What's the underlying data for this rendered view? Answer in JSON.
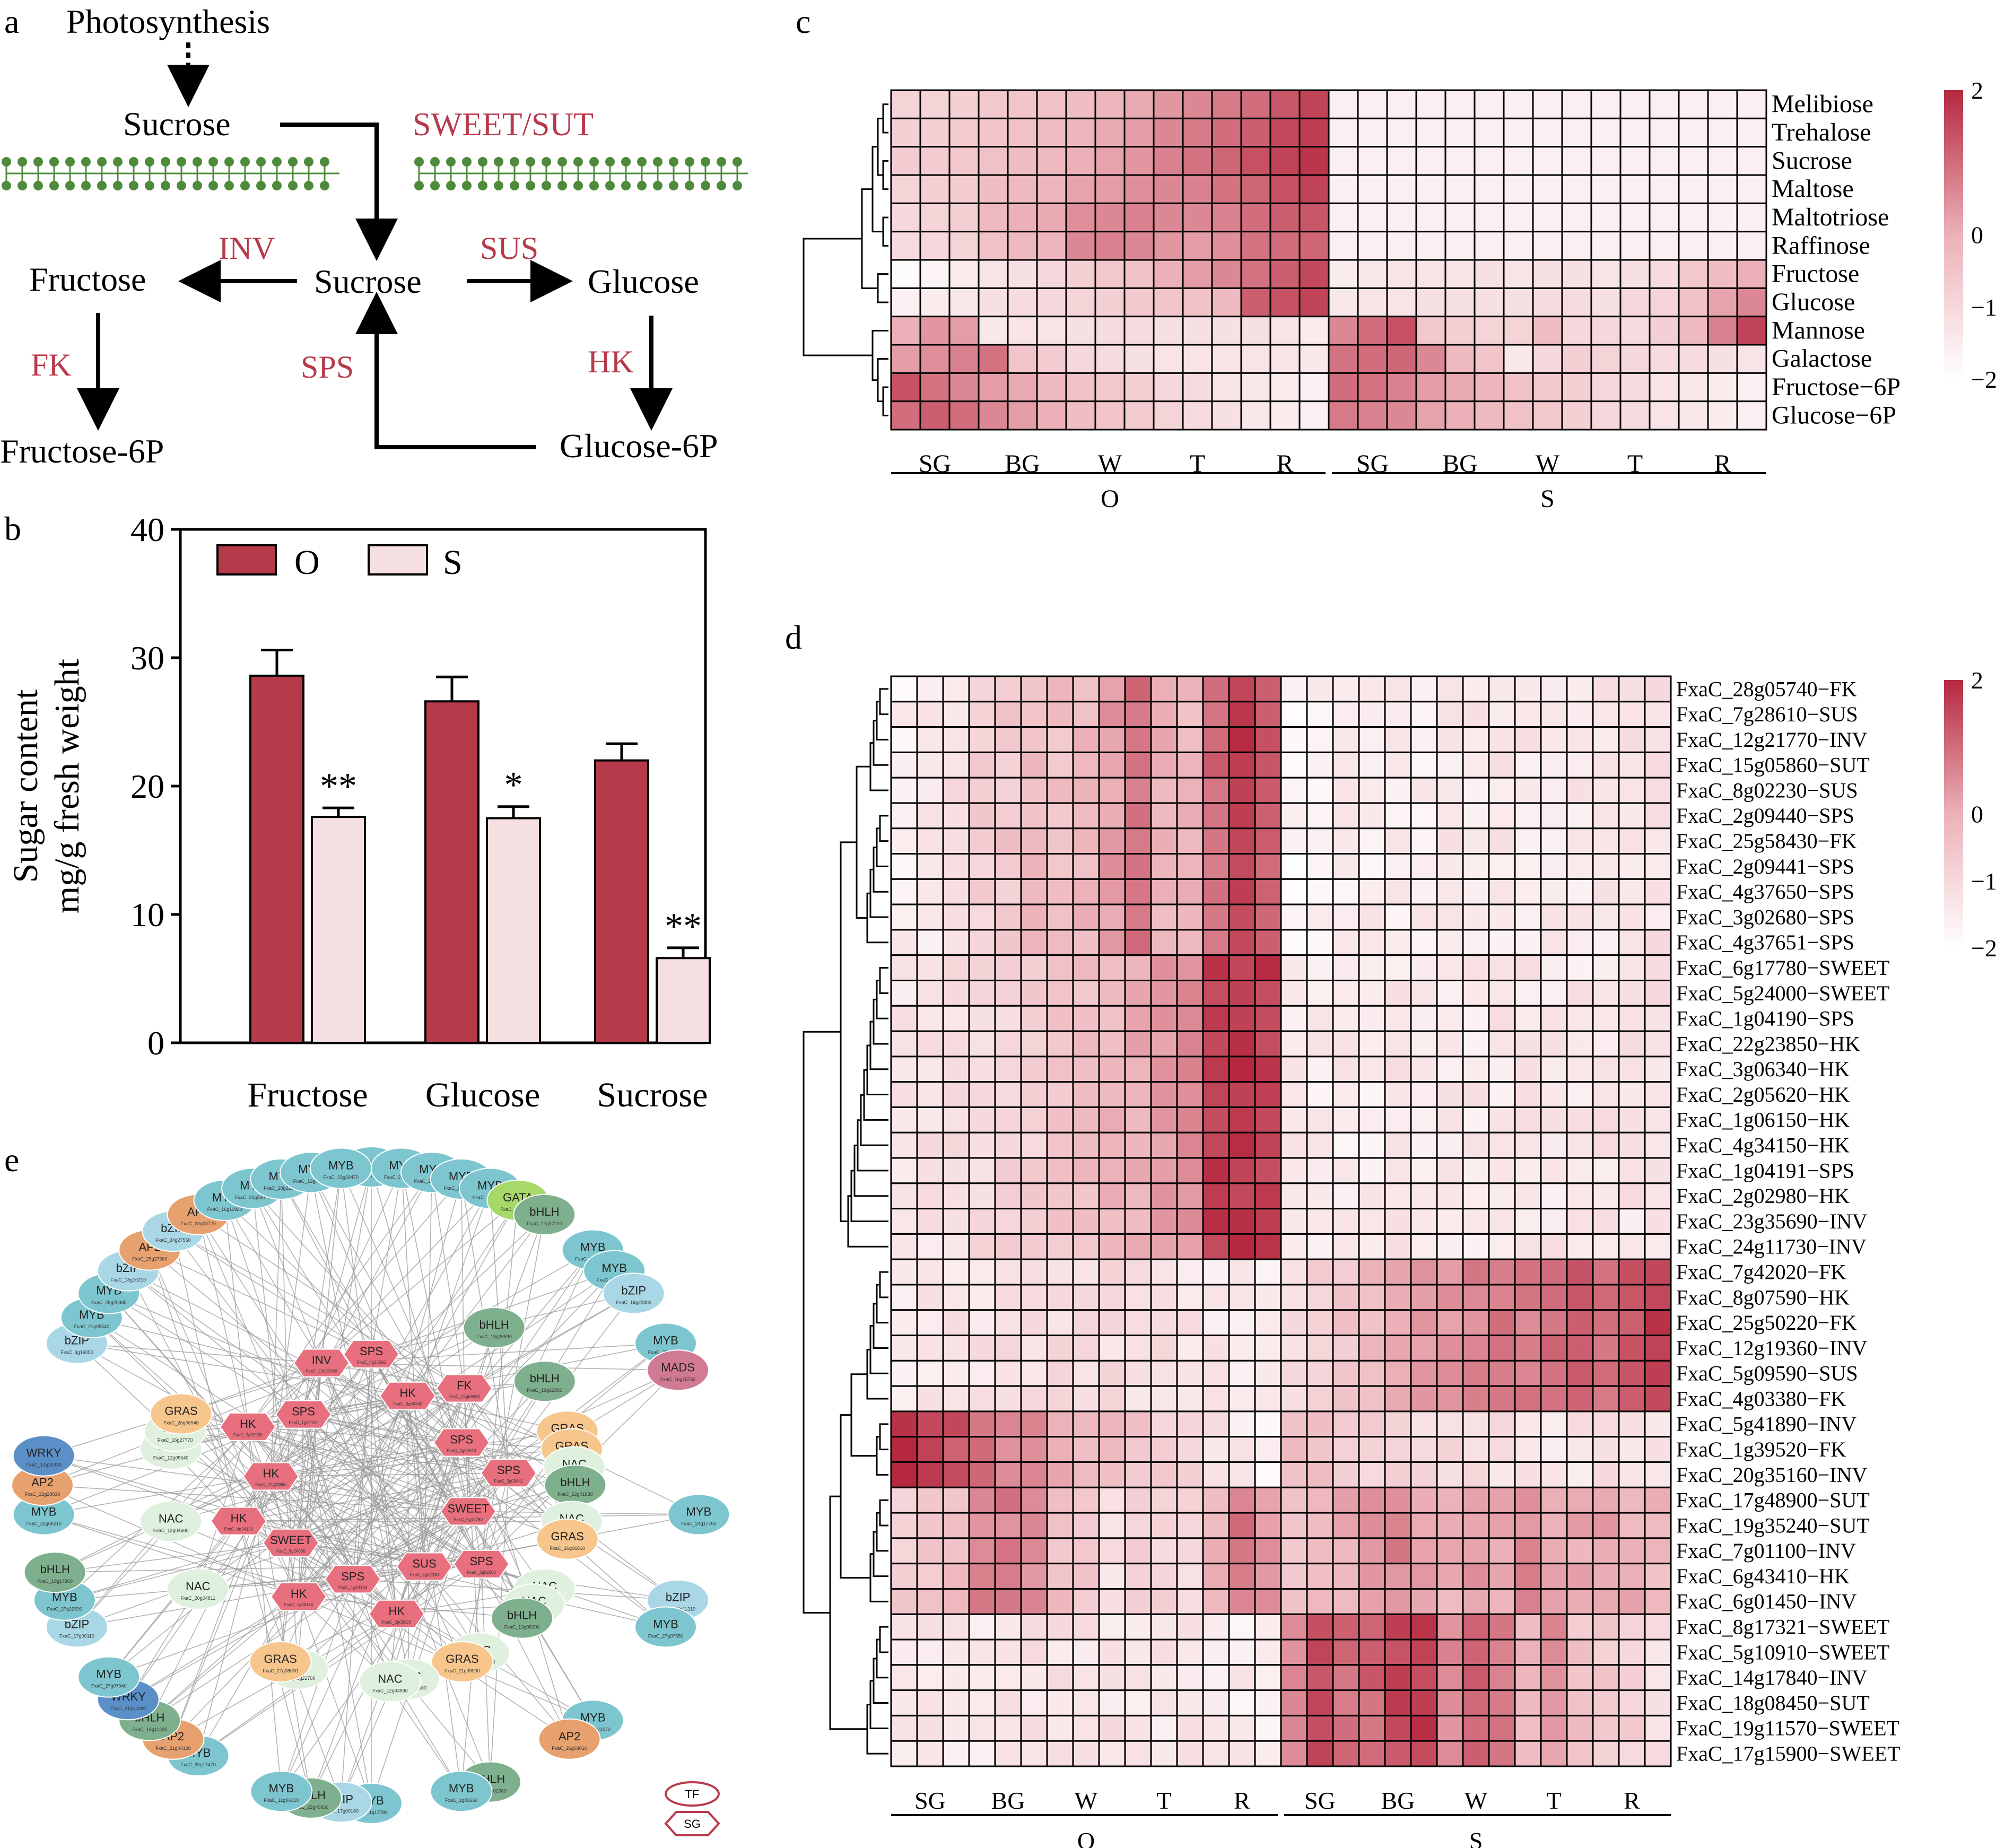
{
  "panels": {
    "a": "a",
    "b": "b",
    "c": "c",
    "d": "d",
    "e": "e"
  },
  "colors": {
    "high": "#b5283f",
    "low": "#ffffff",
    "barO": "#b73a4b",
    "barS": "#f5dfe1",
    "enzyme": "#b73a4b",
    "membrane": "#4f8a3c"
  },
  "pathway": {
    "nodes": {
      "photosynthesis": "Photosynthesis",
      "sucrose_top": "Sucrose",
      "sucrose_mid": "Sucrose",
      "fructose": "Fructose",
      "glucose": "Glucose",
      "fructose6p": "Fructose-6P",
      "glucose6p": "Glucose-6P"
    },
    "enzymes": {
      "transport": "SWEET/SUT",
      "inv": "INV",
      "sus": "SUS",
      "fk": "FK",
      "hk": "HK",
      "sps": "SPS"
    }
  },
  "chart_data": [
    {
      "type": "bar",
      "panel": "b",
      "categories": [
        "Fructose",
        "Glucose",
        "Sucrose"
      ],
      "series": [
        {
          "name": "O",
          "values": [
            28.6,
            26.6,
            22.0
          ],
          "errors": [
            2.0,
            1.9,
            1.3
          ]
        },
        {
          "name": "S",
          "values": [
            17.6,
            17.5,
            6.6
          ],
          "errors": [
            0.7,
            0.9,
            0.8
          ]
        }
      ],
      "significance": [
        "**",
        "*",
        "**"
      ],
      "ylabel_line1": "Sugar content",
      "ylabel_line2": "mg/g fresh weight",
      "ylim": [
        0,
        40
      ],
      "yticks": [
        "0",
        "10",
        "20",
        "30",
        "40"
      ],
      "legend": "top-left"
    },
    {
      "type": "heatmap",
      "panel": "c",
      "rows": [
        "Melibiose",
        "Trehalose",
        "Sucrose",
        "Maltose",
        "Maltotriose",
        "Raffinose",
        "Fructose",
        "Glucose",
        "Mannose",
        "Galactose",
        "Fructose−6P",
        "Glucose−6P"
      ],
      "groups": [
        "SG",
        "BG",
        "W",
        "T",
        "R",
        "SG",
        "BG",
        "W",
        "T",
        "R"
      ],
      "treatments": [
        "O",
        "S"
      ],
      "columns_per_group": 3,
      "scale_ticks": [
        "2",
        "0",
        "−1",
        "−2"
      ],
      "scale_range": [
        -2,
        2
      ],
      "values": [
        [
          -0.9,
          -0.9,
          -0.8,
          -0.6,
          -0.5,
          -0.4,
          -0.3,
          -0.1,
          0.1,
          0.4,
          0.6,
          0.8,
          1.0,
          1.3,
          1.6,
          -1.6,
          -1.6,
          -1.6,
          -1.6,
          -1.6,
          -1.6,
          -1.6,
          -1.6,
          -1.6,
          -1.6,
          -1.6,
          -1.6,
          -1.6,
          -1.6,
          -1.6
        ],
        [
          -0.8,
          -0.8,
          -0.7,
          -0.5,
          -0.4,
          -0.3,
          -0.1,
          0.1,
          0.3,
          0.6,
          0.8,
          1.0,
          1.2,
          1.5,
          1.7,
          -1.6,
          -1.6,
          -1.6,
          -1.6,
          -1.6,
          -1.6,
          -1.6,
          -1.6,
          -1.6,
          -1.6,
          -1.6,
          -1.6,
          -1.6,
          -1.6,
          -1.6
        ],
        [
          -0.7,
          -0.7,
          -0.6,
          -0.4,
          -0.3,
          -0.2,
          0.0,
          0.2,
          0.4,
          0.7,
          0.9,
          1.1,
          1.4,
          1.6,
          1.8,
          -1.6,
          -1.6,
          -1.6,
          -1.6,
          -1.6,
          -1.6,
          -1.6,
          -1.6,
          -1.6,
          -1.6,
          -1.6,
          -1.6,
          -1.6,
          -1.6,
          -1.6
        ],
        [
          -0.9,
          -0.8,
          -0.7,
          -0.3,
          -0.2,
          -0.1,
          0.2,
          0.3,
          0.5,
          0.6,
          0.7,
          0.9,
          1.1,
          1.4,
          1.6,
          -1.6,
          -1.6,
          -1.6,
          -1.6,
          -1.6,
          -1.6,
          -1.6,
          -1.6,
          -1.6,
          -1.6,
          -1.6,
          -1.6,
          -1.6,
          -1.6,
          -1.6
        ],
        [
          -1.0,
          -0.9,
          -0.8,
          -0.2,
          0.0,
          0.1,
          0.5,
          0.6,
          0.7,
          0.6,
          0.6,
          0.7,
          1.0,
          1.2,
          1.3,
          -1.6,
          -1.6,
          -1.6,
          -1.6,
          -1.6,
          -1.6,
          -1.6,
          -1.6,
          -1.6,
          -1.6,
          -1.6,
          -1.6,
          -1.6,
          -1.6,
          -1.6
        ],
        [
          -1.1,
          -1.0,
          -0.9,
          -0.4,
          -0.2,
          -0.1,
          0.6,
          0.7,
          0.6,
          0.4,
          0.3,
          0.5,
          0.9,
          1.0,
          1.1,
          -1.6,
          -1.6,
          -1.6,
          -1.6,
          -1.6,
          -1.6,
          -1.6,
          -1.6,
          -1.6,
          -1.6,
          -1.6,
          -1.6,
          -1.6,
          -1.6,
          -1.6
        ],
        [
          -1.9,
          -1.7,
          -1.5,
          -1.3,
          -1.2,
          -1.0,
          -0.8,
          -0.6,
          -0.4,
          0.0,
          0.3,
          0.6,
          0.9,
          1.2,
          1.5,
          -1.5,
          -1.4,
          -1.3,
          -1.3,
          -1.3,
          -1.2,
          -1.3,
          -1.2,
          -1.2,
          -1.3,
          -1.2,
          -1.1,
          -0.6,
          -0.3,
          0.0
        ],
        [
          -1.6,
          -1.5,
          -1.4,
          -1.2,
          -1.1,
          -1.0,
          -0.9,
          -0.8,
          -0.6,
          -0.5,
          -0.4,
          -0.2,
          1.2,
          1.4,
          1.6,
          -1.4,
          -1.3,
          -1.3,
          -1.2,
          -1.2,
          -1.2,
          -1.2,
          -1.1,
          -1.1,
          -1.2,
          -1.0,
          -0.9,
          -0.4,
          0.2,
          0.6
        ],
        [
          0.0,
          0.4,
          0.3,
          -1.4,
          -1.3,
          -1.3,
          -1.2,
          -1.1,
          -1.1,
          -1.2,
          -1.2,
          -1.2,
          -1.2,
          -1.3,
          -1.5,
          0.6,
          1.0,
          1.4,
          -0.6,
          -0.8,
          -0.9,
          -0.9,
          -0.3,
          -1.0,
          -1.0,
          -1.1,
          -0.8,
          -0.2,
          0.7,
          1.6
        ],
        [
          0.3,
          0.5,
          0.7,
          0.9,
          -0.5,
          -0.7,
          -1.0,
          -1.1,
          -1.2,
          -1.3,
          -1.3,
          -1.3,
          -1.3,
          -1.3,
          -1.4,
          0.9,
          1.0,
          1.1,
          0.6,
          -0.2,
          -0.5,
          -1.4,
          -1.0,
          -0.8,
          -0.9,
          -1.0,
          -1.1,
          -1.1,
          -1.2,
          -1.3
        ],
        [
          1.4,
          0.9,
          0.6,
          0.3,
          0.1,
          -0.2,
          -0.4,
          -0.6,
          -0.8,
          -1.0,
          -1.1,
          -1.3,
          -1.4,
          -1.5,
          -1.6,
          1.0,
          0.9,
          0.7,
          0.3,
          0.1,
          -0.1,
          -0.4,
          -0.6,
          -0.8,
          -1.0,
          -1.1,
          -1.3,
          -1.4,
          -1.5,
          -1.6
        ],
        [
          1.0,
          1.2,
          1.0,
          0.6,
          0.3,
          0.0,
          -0.3,
          -0.5,
          -0.7,
          -0.9,
          -1.1,
          -1.2,
          -1.4,
          -1.5,
          -1.6,
          0.8,
          0.7,
          0.6,
          0.2,
          0.0,
          -0.2,
          -0.4,
          -0.6,
          -0.8,
          -1.0,
          -1.1,
          -1.3,
          -1.4,
          -1.5,
          -1.6
        ]
      ]
    },
    {
      "type": "heatmap",
      "panel": "d",
      "rows": [
        "FxaC_28g05740−FK",
        "FxaC_7g28610−SUS",
        "FxaC_12g21770−INV",
        "FxaC_15g05860−SUT",
        "FxaC_8g02230−SUS",
        "FxaC_2g09440−SPS",
        "FxaC_25g58430−FK",
        "FxaC_2g09441−SPS",
        "FxaC_4g37650−SPS",
        "FxaC_3g02680−SPS",
        "FxaC_4g37651−SPS",
        "FxaC_6g17780−SWEET",
        "FxaC_5g24000−SWEET",
        "FxaC_1g04190−SPS",
        "FxaC_22g23850−HK",
        "FxaC_3g06340−HK",
        "FxaC_2g05620−HK",
        "FxaC_1g06150−HK",
        "FxaC_4g34150−HK",
        "FxaC_1g04191−SPS",
        "FxaC_2g02980−HK",
        "FxaC_23g35690−INV",
        "FxaC_24g11730−INV",
        "FxaC_7g42020−FK",
        "FxaC_8g07590−HK",
        "FxaC_25g50220−FK",
        "FxaC_12g19360−INV",
        "FxaC_5g09590−SUS",
        "FxaC_4g03380−FK",
        "FxaC_5g41890−INV",
        "FxaC_1g39520−FK",
        "FxaC_20g35160−INV",
        "FxaC_17g48900−SUT",
        "FxaC_19g35240−SUT",
        "FxaC_7g01100−INV",
        "FxaC_6g43410−HK",
        "FxaC_6g01450−INV",
        "FxaC_8g17321−SWEET",
        "FxaC_5g10910−SWEET",
        "FxaC_14g17840−INV",
        "FxaC_18g08450−SUT",
        "FxaC_19g11570−SWEET",
        "FxaC_17g15900−SWEET"
      ],
      "groups": [
        "SG",
        "BG",
        "W",
        "T",
        "R",
        "SG",
        "BG",
        "W",
        "T",
        "R"
      ],
      "treatments": [
        "O",
        "S"
      ],
      "columns_per_group": 3,
      "scale_ticks": [
        "2",
        "0",
        "−1",
        "−2"
      ],
      "scale_range": [
        -2,
        2
      ],
      "profiles": [
        1,
        1,
        1,
        1,
        1,
        1,
        1,
        1,
        1,
        1,
        1,
        2,
        2,
        2,
        2,
        2,
        2,
        2,
        2,
        2,
        2,
        2,
        2,
        3,
        3,
        3,
        3,
        3,
        3,
        4,
        4,
        4,
        5,
        5,
        5,
        5,
        5,
        6,
        6,
        6,
        6,
        6,
        6
      ]
    }
  ],
  "network": {
    "tf_nodes": [
      {
        "label": "MYB",
        "id": "FxaC_17g21620",
        "family": "MYB"
      },
      {
        "label": "MYB",
        "id": "FxaC_21g08690",
        "family": "MYB"
      },
      {
        "label": "MYB",
        "id": "FxaC_27g38640",
        "family": "MYB"
      },
      {
        "label": "MYB",
        "id": "FxaC_23g22440",
        "family": "MYB"
      },
      {
        "label": "MYB",
        "id": "FxaC_26g35100",
        "family": "MYB"
      },
      {
        "label": "GATA",
        "id": "FxaC_11g22800",
        "family": "GATA"
      },
      {
        "label": "bHLH",
        "id": "FxaC_21g07220",
        "family": "bHLH"
      },
      {
        "label": "bHLH",
        "id": "FxaC_18g20630",
        "family": "bHLH"
      },
      {
        "label": "MYB",
        "id": "FxaC_25g04560",
        "family": "MYB"
      },
      {
        "label": "MYB",
        "id": "FxaC_24g27760",
        "family": "MYB"
      },
      {
        "label": "bZIP",
        "id": "FxaC_19g22800",
        "family": "bZIP"
      },
      {
        "label": "bHLH",
        "id": "FxaC_19g22850",
        "family": "bHLH"
      },
      {
        "label": "MYB",
        "id": "FxaC_25g59430",
        "family": "MYB"
      },
      {
        "label": "MADS",
        "id": "FxaC_16g15760",
        "family": "MADS"
      },
      {
        "label": "GRAS",
        "id": "FxaC_26g06470",
        "family": "GRAS"
      },
      {
        "label": "GRAS",
        "id": "FxaC_26g08330",
        "family": "GRAS"
      },
      {
        "label": "NAC",
        "id": "FxaC_11g22160",
        "family": "NAC"
      },
      {
        "label": "bHLH",
        "id": "FxaC_22g41820",
        "family": "bHLH"
      },
      {
        "label": "MYB",
        "id": "FxaC_24g17760",
        "family": "MYB"
      },
      {
        "label": "NAC",
        "id": "FxaC_27g02210",
        "family": "NAC"
      },
      {
        "label": "GRAS",
        "id": "FxaC_26g06810",
        "family": "GRAS"
      },
      {
        "label": "bZIP",
        "id": "FxaC_14g11310",
        "family": "bZIP"
      },
      {
        "label": "MYB",
        "id": "FxaC_27g07580",
        "family": "MYB"
      },
      {
        "label": "NAC",
        "id": "FxaC_27g02270",
        "family": "NAC"
      },
      {
        "label": "NAC",
        "id": "FxaC_19g04300",
        "family": "NAC"
      },
      {
        "label": "bHLH",
        "id": "FxaC_13g08300",
        "family": "bHLH"
      },
      {
        "label": "MYB",
        "id": "FxaC_20g22070",
        "family": "MYB"
      },
      {
        "label": "AP2",
        "id": "FxaC_26g03010",
        "family": "AP2"
      },
      {
        "label": "NAC",
        "id": "FxaC_5g27650",
        "family": "NAC"
      },
      {
        "label": "GRAS",
        "id": "FxaC_21g09900",
        "family": "GRAS"
      },
      {
        "label": "bHLH",
        "id": "FxaC_4g02360",
        "family": "bHLH"
      },
      {
        "label": "MYB",
        "id": "FxaC_1g03660",
        "family": "MYB"
      },
      {
        "label": "NAC",
        "id": "FxaC_12g28600",
        "family": "NAC"
      },
      {
        "label": "NAC",
        "id": "FxaC_12g34930",
        "family": "NAC"
      },
      {
        "label": "MYB",
        "id": "FxaC_1g17780",
        "family": "MYB"
      },
      {
        "label": "bZIP",
        "id": "FxaC_17g00180",
        "family": "bZIP"
      },
      {
        "label": "bHLH",
        "id": "FxaC_22g40860",
        "family": "bHLH"
      },
      {
        "label": "MYB",
        "id": "FxaC_11g06010",
        "family": "MYB"
      },
      {
        "label": "NAC",
        "id": "FxaC_16g22700",
        "family": "NAC"
      },
      {
        "label": "GRAS",
        "id": "FxaC_27g08000",
        "family": "GRAS"
      },
      {
        "label": "MYB",
        "id": "FxaC_20g17470",
        "family": "MYB"
      },
      {
        "label": "AP2",
        "id": "FxaC_21g04120",
        "family": "AP2"
      },
      {
        "label": "bHLH",
        "id": "FxaC_19g11230",
        "family": "bHLH"
      },
      {
        "label": "WRKY",
        "id": "FxaC_21g14280",
        "family": "WRKY"
      },
      {
        "label": "MYB",
        "id": "FxaC_27g07940",
        "family": "MYB"
      },
      {
        "label": "NAC",
        "id": "FxaC_20g04811",
        "family": "NAC"
      },
      {
        "label": "bZIP",
        "id": "FxaC_17g00110",
        "family": "bZIP"
      },
      {
        "label": "MYB",
        "id": "FxaC_27g22590",
        "family": "MYB"
      },
      {
        "label": "bHLH",
        "id": "FxaC_18g17900",
        "family": "bHLH"
      },
      {
        "label": "NAC",
        "id": "FxaC_12g04680",
        "family": "NAC"
      },
      {
        "label": "MYB",
        "id": "FxaC_22g06210",
        "family": "MYB"
      },
      {
        "label": "AP2",
        "id": "FxaC_22g28830",
        "family": "AP2"
      },
      {
        "label": "WRKY",
        "id": "FxaC_14g26330",
        "family": "WRKY"
      },
      {
        "label": "NAC",
        "id": "FxaC_12g05640",
        "family": "NAC"
      },
      {
        "label": "NAC",
        "id": "FxaC_16g27770",
        "family": "NAC"
      },
      {
        "label": "GRAS",
        "id": "FxaC_26g06940",
        "family": "GRAS"
      },
      {
        "label": "bZIP",
        "id": "FxaC_3g16050",
        "family": "bZIP"
      },
      {
        "label": "MYB",
        "id": "FxaC_21g05540",
        "family": "MYB"
      },
      {
        "label": "MYB",
        "id": "FxaC_28g20880",
        "family": "MYB"
      },
      {
        "label": "bZIP",
        "id": "FxaC_18g10210",
        "family": "bZIP"
      },
      {
        "label": "AP2",
        "id": "FxaC_25g27560",
        "family": "AP2"
      },
      {
        "label": "bZIP",
        "id": "FxaC_24g27550",
        "family": "bZIP"
      },
      {
        "label": "AP2",
        "id": "FxaC_23g03770",
        "family": "AP2"
      },
      {
        "label": "MYB",
        "id": "FxaC_16g11920",
        "family": "MYB"
      },
      {
        "label": "MYB",
        "id": "FxaC_20g26070",
        "family": "MYB"
      },
      {
        "label": "MYB",
        "id": "FxaC_28g22580",
        "family": "MYB"
      },
      {
        "label": "MYB",
        "id": "FxaC_19g02380",
        "family": "MYB"
      },
      {
        "label": "MYB",
        "id": "FxaC_23g39470",
        "family": "MYB"
      }
    ],
    "sg_nodes": [
      {
        "label": "SPS",
        "id": "FxaC_4g37650"
      },
      {
        "label": "HK",
        "id": "FxaC_3g06340"
      },
      {
        "label": "FK",
        "id": "FxaC_25g58430"
      },
      {
        "label": "SPS",
        "id": "FxaC_2g09440"
      },
      {
        "label": "SPS",
        "id": "FxaC_2g09441"
      },
      {
        "label": "SWEET",
        "id": "FxaC_6g17780"
      },
      {
        "label": "SPS",
        "id": "FxaC_3g02680"
      },
      {
        "label": "SUS",
        "id": "FxaC_8g02230"
      },
      {
        "label": "HK",
        "id": "FxaC_2g05620"
      },
      {
        "label": "SPS",
        "id": "FxaC_1g04190"
      },
      {
        "label": "HK",
        "id": "FxaC_1g06150"
      },
      {
        "label": "SWEET",
        "id": "FxaC_5g24000"
      },
      {
        "label": "HK",
        "id": "FxaC_4g34150"
      },
      {
        "label": "HK",
        "id": "FxaC_22g23850"
      },
      {
        "label": "HK",
        "id": "FxaC_2g02980"
      },
      {
        "label": "SPS",
        "id": "FxaC_1g04191"
      },
      {
        "label": "INV",
        "id": "FxaC_23g35690"
      }
    ],
    "legend": {
      "tf": "TF",
      "sg": "SG"
    }
  }
}
